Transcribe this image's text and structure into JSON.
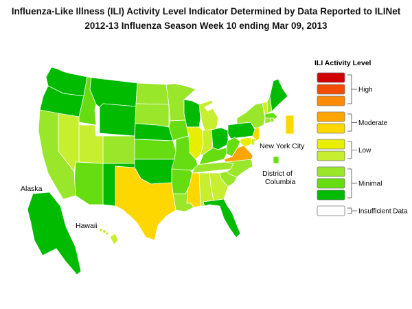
{
  "title": "Influenza-Like Illness (ILI) Activity Level Indicator Determined by Data Reported to ILINet",
  "subtitle": "2012-13  Influenza Season Week  10 ending Mar 09, 2013",
  "labels": {
    "alaska": "Alaska",
    "hawaii": "Hawaii",
    "nyc": "New York City",
    "dc_line1": "District of",
    "dc_line2": "Columbia"
  },
  "legend": {
    "title": "ILI Activity Level",
    "groups": [
      {
        "label": "High",
        "levels": [
          10,
          9,
          8
        ]
      },
      {
        "label": "Moderate",
        "levels": [
          7,
          6
        ]
      },
      {
        "label": "Low",
        "levels": [
          5,
          4
        ]
      },
      {
        "label": "Minimal",
        "levels": [
          3,
          2,
          1
        ]
      },
      {
        "label": "Insufficient Data",
        "levels": [
          0
        ]
      }
    ]
  },
  "level_colors": {
    "10": "#d10000",
    "9": "#f24d00",
    "8": "#ff8c00",
    "7": "#ffa500",
    "6": "#ffd700",
    "5": "#e8ee00",
    "4": "#c8ee30",
    "3": "#99e62b",
    "2": "#66dd11",
    "1": "#00bb00",
    "0": "#ffffff"
  },
  "state_levels": {
    "WA": 1,
    "OR": 1,
    "ID": 2,
    "MT": 1,
    "WY": 1,
    "ND": 3,
    "SD": 3,
    "MN": 3,
    "WI": 1,
    "MI": 4,
    "IA": 2,
    "NE": 1,
    "CA": 3,
    "NV": 4,
    "UT": 4,
    "CO": 3,
    "AZ": 2,
    "NM": 1,
    "KS": 2,
    "OK": 1,
    "TX": 6,
    "MO": 2,
    "AR": 2,
    "LA": 3,
    "IL": 5,
    "IN": 4,
    "OH": 1,
    "KY": 2,
    "TN": 3,
    "MS": 6,
    "AL": 4,
    "GA": 4,
    "FL": 1,
    "SC": 3,
    "NC": 3,
    "VA": 7,
    "WV": 2,
    "PA": 1,
    "NY": 3,
    "VT": 4,
    "NH": 3,
    "ME": 1,
    "MA": 2,
    "RI": 3,
    "CT": 3,
    "NJ": 6,
    "DE": 4,
    "MD": 5,
    "AK": 1,
    "HI": 4,
    "NYC": 6,
    "DC": 2
  }
}
